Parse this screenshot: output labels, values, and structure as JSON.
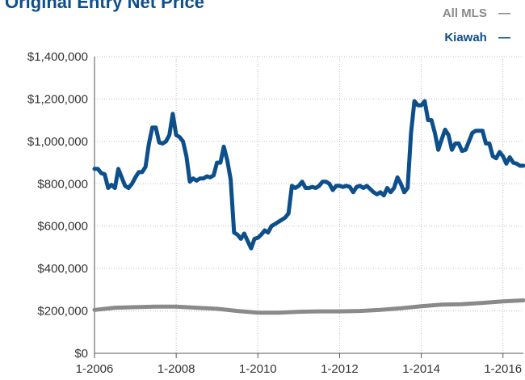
{
  "title": "Original Entry Net Price",
  "legend": [
    {
      "label": "All MLS",
      "symbol": "—",
      "color": "#8a8a8a"
    },
    {
      "label": "Kiawah",
      "symbol": "—",
      "color": "#0d4f8b"
    }
  ],
  "chart_data": {
    "type": "line",
    "ylim": [
      0,
      1400000
    ],
    "xlim": [
      "1-2006",
      "7-2016"
    ],
    "y_ticks": [
      "$0",
      "$200,000",
      "$400,000",
      "$600,000",
      "$800,000",
      "$1,000,000",
      "$1,200,000",
      "$1,400,000"
    ],
    "x_ticks": [
      "1-2006",
      "1-2008",
      "1-2010",
      "1-2012",
      "1-2014",
      "1-2016"
    ],
    "grid": true,
    "series": [
      {
        "name": "Kiawah",
        "color": "#0d4f8b",
        "points": [
          [
            "1-2006",
            870000
          ],
          [
            "2-2006",
            870000
          ],
          [
            "3-2006",
            850000
          ],
          [
            "4-2006",
            845000
          ],
          [
            "5-2006",
            780000
          ],
          [
            "6-2006",
            795000
          ],
          [
            "7-2006",
            780000
          ],
          [
            "8-2006",
            870000
          ],
          [
            "9-2006",
            830000
          ],
          [
            "10-2006",
            790000
          ],
          [
            "11-2006",
            780000
          ],
          [
            "12-2006",
            800000
          ],
          [
            "1-2007",
            830000
          ],
          [
            "2-2007",
            855000
          ],
          [
            "3-2007",
            855000
          ],
          [
            "4-2007",
            880000
          ],
          [
            "5-2007",
            990000
          ],
          [
            "6-2007",
            1065000
          ],
          [
            "7-2007",
            1065000
          ],
          [
            "8-2007",
            995000
          ],
          [
            "9-2007",
            990000
          ],
          [
            "10-2007",
            1000000
          ],
          [
            "11-2007",
            1030000
          ],
          [
            "12-2007",
            1130000
          ],
          [
            "1-2008",
            1030000
          ],
          [
            "2-2008",
            1020000
          ],
          [
            "3-2008",
            1000000
          ],
          [
            "4-2008",
            930000
          ],
          [
            "5-2008",
            810000
          ],
          [
            "6-2008",
            825000
          ],
          [
            "7-2008",
            815000
          ],
          [
            "8-2008",
            825000
          ],
          [
            "9-2008",
            825000
          ],
          [
            "10-2008",
            835000
          ],
          [
            "11-2008",
            830000
          ],
          [
            "12-2008",
            840000
          ],
          [
            "1-2009",
            900000
          ],
          [
            "2-2009",
            900000
          ],
          [
            "3-2009",
            975000
          ],
          [
            "4-2009",
            910000
          ],
          [
            "5-2009",
            820000
          ],
          [
            "6-2009",
            570000
          ],
          [
            "7-2009",
            560000
          ],
          [
            "8-2009",
            540000
          ],
          [
            "9-2009",
            565000
          ],
          [
            "10-2009",
            530000
          ],
          [
            "11-2009",
            495000
          ],
          [
            "12-2009",
            540000
          ],
          [
            "1-2010",
            545000
          ],
          [
            "2-2010",
            560000
          ],
          [
            "3-2010",
            580000
          ],
          [
            "4-2010",
            570000
          ],
          [
            "5-2010",
            600000
          ],
          [
            "6-2010",
            610000
          ],
          [
            "7-2010",
            620000
          ],
          [
            "8-2010",
            630000
          ],
          [
            "9-2010",
            640000
          ],
          [
            "10-2010",
            660000
          ],
          [
            "11-2010",
            790000
          ],
          [
            "12-2010",
            780000
          ],
          [
            "1-2011",
            790000
          ],
          [
            "2-2011",
            810000
          ],
          [
            "3-2011",
            780000
          ],
          [
            "4-2011",
            780000
          ],
          [
            "5-2011",
            785000
          ],
          [
            "6-2011",
            780000
          ],
          [
            "7-2011",
            790000
          ],
          [
            "8-2011",
            810000
          ],
          [
            "9-2011",
            810000
          ],
          [
            "10-2011",
            800000
          ],
          [
            "11-2011",
            770000
          ],
          [
            "12-2011",
            790000
          ],
          [
            "1-2012",
            790000
          ],
          [
            "2-2012",
            785000
          ],
          [
            "3-2012",
            790000
          ],
          [
            "4-2012",
            785000
          ],
          [
            "5-2012",
            760000
          ],
          [
            "6-2012",
            785000
          ],
          [
            "7-2012",
            790000
          ],
          [
            "8-2012",
            780000
          ],
          [
            "9-2012",
            790000
          ],
          [
            "10-2012",
            775000
          ],
          [
            "11-2012",
            760000
          ],
          [
            "12-2012",
            750000
          ],
          [
            "1-2013",
            760000
          ],
          [
            "2-2013",
            745000
          ],
          [
            "3-2013",
            780000
          ],
          [
            "4-2013",
            760000
          ],
          [
            "5-2013",
            780000
          ],
          [
            "6-2013",
            830000
          ],
          [
            "7-2013",
            800000
          ],
          [
            "8-2013",
            760000
          ],
          [
            "9-2013",
            780000
          ],
          [
            "10-2013",
            1040000
          ],
          [
            "11-2013",
            1190000
          ],
          [
            "12-2013",
            1170000
          ],
          [
            "1-2014",
            1170000
          ],
          [
            "2-2014",
            1190000
          ],
          [
            "3-2014",
            1100000
          ],
          [
            "4-2014",
            1100000
          ],
          [
            "5-2014",
            1040000
          ],
          [
            "6-2014",
            960000
          ],
          [
            "7-2014",
            1010000
          ],
          [
            "8-2014",
            1055000
          ],
          [
            "9-2014",
            1030000
          ],
          [
            "10-2014",
            960000
          ],
          [
            "11-2014",
            990000
          ],
          [
            "12-2014",
            990000
          ],
          [
            "1-2015",
            955000
          ],
          [
            "2-2015",
            960000
          ],
          [
            "3-2015",
            1000000
          ],
          [
            "4-2015",
            1040000
          ],
          [
            "5-2015",
            1050000
          ],
          [
            "6-2015",
            1050000
          ],
          [
            "7-2015",
            1050000
          ],
          [
            "8-2015",
            990000
          ],
          [
            "9-2015",
            990000
          ],
          [
            "10-2015",
            930000
          ],
          [
            "11-2015",
            920000
          ],
          [
            "12-2015",
            950000
          ],
          [
            "1-2016",
            930000
          ],
          [
            "2-2016",
            895000
          ],
          [
            "3-2016",
            925000
          ],
          [
            "4-2016",
            900000
          ],
          [
            "5-2016",
            895000
          ],
          [
            "6-2016",
            885000
          ],
          [
            "7-2016",
            885000
          ]
        ]
      },
      {
        "name": "All MLS",
        "color": "#8a8a8a",
        "points": [
          [
            "1-2006",
            205000
          ],
          [
            "7-2006",
            215000
          ],
          [
            "1-2007",
            218000
          ],
          [
            "7-2007",
            220000
          ],
          [
            "1-2008",
            220000
          ],
          [
            "7-2008",
            215000
          ],
          [
            "1-2009",
            210000
          ],
          [
            "7-2009",
            200000
          ],
          [
            "1-2010",
            192000
          ],
          [
            "7-2010",
            192000
          ],
          [
            "1-2011",
            196000
          ],
          [
            "7-2011",
            198000
          ],
          [
            "1-2012",
            198000
          ],
          [
            "7-2012",
            200000
          ],
          [
            "1-2013",
            205000
          ],
          [
            "7-2013",
            213000
          ],
          [
            "1-2014",
            222000
          ],
          [
            "7-2014",
            230000
          ],
          [
            "1-2015",
            232000
          ],
          [
            "7-2015",
            238000
          ],
          [
            "1-2016",
            245000
          ],
          [
            "7-2016",
            250000
          ]
        ]
      }
    ]
  }
}
